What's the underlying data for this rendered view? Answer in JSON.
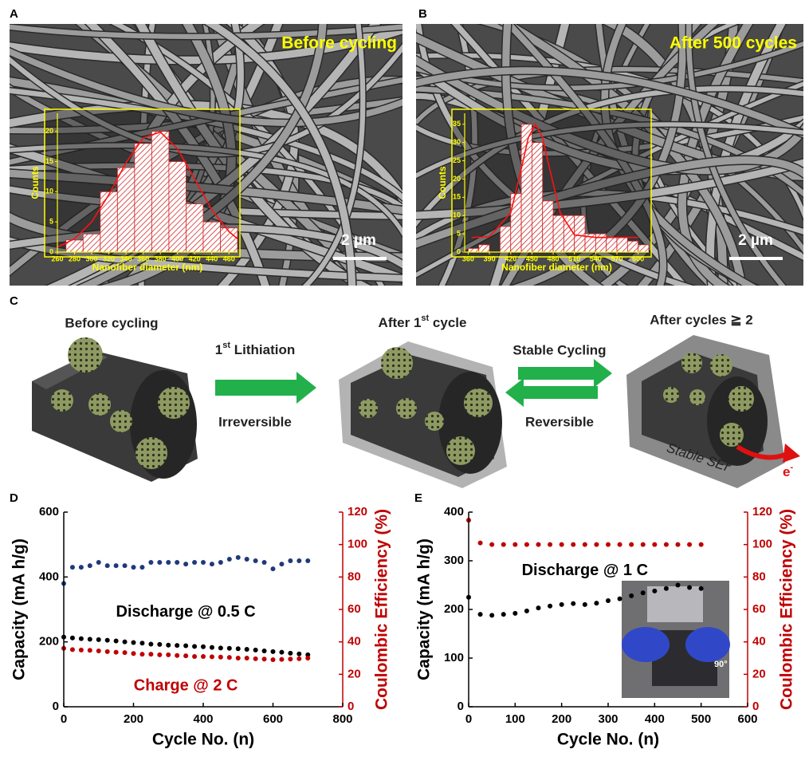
{
  "panel_labels": [
    "A",
    "B",
    "C",
    "D",
    "E"
  ],
  "sem": [
    {
      "caption": "Before cycling",
      "scale_bar": "2 µm"
    },
    {
      "caption": "After 500 cycles",
      "scale_bar": "2 µm"
    }
  ],
  "diagram": {
    "stage1": "Before cycling",
    "lithiation": {
      "number": "1",
      "sup": "st",
      "rest": " Lithiation"
    },
    "irreversible": "Irreversible",
    "stage2": {
      "before": "After 1",
      "sup": "st",
      "after": " cycle"
    },
    "stable_cycling": "Stable Cycling",
    "reversible": "Reversible",
    "stage3": "After cycles ≧ 2",
    "sei": "Stable SEI",
    "electron": {
      "base": "e",
      "sup": "-"
    }
  },
  "chart_data": [
    {
      "type": "histogram",
      "x_label": "Nanofiber diameter  (nm)",
      "y_label": "Counts",
      "color": "#cc2020",
      "axis_color": "#ffff00",
      "bins": [
        270,
        290,
        310,
        330,
        350,
        370,
        390,
        410,
        430,
        450,
        470
      ],
      "counts": [
        2,
        3,
        10,
        14,
        18,
        20,
        15,
        8,
        5,
        4
      ],
      "fit": {
        "color": "#ff1010",
        "x": [
          260,
          280,
          300,
          320,
          340,
          360,
          380,
          400,
          420,
          440,
          460,
          470
        ],
        "values": [
          0.8,
          2.2,
          5.0,
          9.5,
          14.8,
          18.9,
          19.9,
          17.1,
          12.1,
          7.0,
          3.4,
          2.2
        ]
      },
      "xlim": [
        260,
        470
      ],
      "ylim": [
        0,
        23
      ],
      "xticks": [
        260,
        280,
        300,
        320,
        340,
        360,
        380,
        400,
        420,
        440,
        460
      ],
      "yticks": [
        0,
        5,
        10,
        15,
        20
      ]
    },
    {
      "type": "histogram",
      "x_label": "Nanofiber diameter  (nm)",
      "y_label": "Counts",
      "color": "#cc2020",
      "axis_color": "#ffff00",
      "bins": [
        360,
        375,
        390,
        405,
        420,
        435,
        450,
        465,
        480,
        495,
        510,
        525,
        540,
        555,
        570,
        585,
        600,
        615
      ],
      "counts": [
        1,
        2,
        0,
        7,
        16,
        35,
        30,
        14,
        10,
        10,
        10,
        5,
        5,
        4,
        4,
        3,
        2
      ],
      "fit": {
        "color": "#ff1010",
        "x": [
          365,
          390,
          420,
          435,
          445,
          455,
          465,
          475,
          490,
          510,
          540,
          570,
          600
        ],
        "values": [
          4.0,
          4.2,
          10.7,
          22.8,
          31.4,
          35,
          31.4,
          22.8,
          10.7,
          4.7,
          4.0,
          4.0,
          4.0
        ]
      },
      "xlim": [
        355,
        615
      ],
      "ylim": [
        0,
        38
      ],
      "xticks": [
        360,
        390,
        420,
        450,
        480,
        510,
        540,
        570,
        600
      ],
      "yticks": [
        0,
        5,
        10,
        15,
        20,
        25,
        30,
        35
      ]
    },
    {
      "type": "scatter",
      "x_label": "Cycle No. (n)",
      "y_label": "Capacity (mA h/g)",
      "y2_label": "Coulombic Efficiency (%)",
      "y2_color": "#c00000",
      "x": [
        0,
        25,
        50,
        75,
        100,
        125,
        150,
        175,
        200,
        225,
        250,
        275,
        300,
        325,
        350,
        375,
        400,
        425,
        450,
        475,
        500,
        525,
        550,
        575,
        600,
        625,
        650,
        675,
        700
      ],
      "series": [
        {
          "color": "#1f3a7a",
          "axis": "y2",
          "values": [
            76,
            86,
            86,
            87,
            89,
            87,
            87,
            87,
            86,
            86,
            89,
            89,
            89,
            89,
            88,
            89,
            89,
            88,
            89,
            91,
            92,
            91,
            90,
            89,
            85,
            88,
            90,
            90,
            90
          ]
        },
        {
          "name": "Discharge @ 0.5 C",
          "color": "#000000",
          "values": [
            215,
            212,
            210,
            208,
            207,
            205,
            203,
            200,
            198,
            196,
            193,
            192,
            190,
            189,
            188,
            186,
            185,
            183,
            181,
            180,
            179,
            177,
            175,
            172,
            170,
            168,
            165,
            163,
            160
          ]
        },
        {
          "name": "Charge @ 2 C",
          "color": "#c00000",
          "values": [
            180,
            176,
            175,
            174,
            172,
            170,
            168,
            167,
            164,
            162,
            162,
            160,
            160,
            158,
            157,
            155,
            155,
            154,
            153,
            152,
            150,
            150,
            148,
            147,
            145,
            146,
            147,
            148,
            150
          ]
        }
      ],
      "xlim": [
        0,
        800
      ],
      "ylim": [
        0,
        600
      ],
      "y2lim": [
        0,
        120
      ],
      "xticks": [
        0,
        200,
        400,
        600,
        800
      ],
      "yticks": [
        0,
        200,
        400,
        600
      ],
      "y2ticks": [
        0,
        20,
        40,
        60,
        80,
        100,
        120
      ]
    },
    {
      "type": "scatter",
      "x_label": "Cycle No. (n)",
      "y_label": "Capacity (mA h/g)",
      "y2_label": "Coulombic Efficiency (%)",
      "y2_color": "#c00000",
      "inset_label": "90°",
      "x": [
        0,
        25,
        50,
        75,
        100,
        125,
        150,
        175,
        200,
        225,
        250,
        275,
        300,
        325,
        350,
        375,
        400,
        425,
        450,
        475,
        500
      ],
      "series": [
        {
          "color": "#c00000",
          "axis": "y2",
          "values": [
            115,
            101,
            100,
            100,
            100,
            100,
            100,
            100,
            100,
            100,
            100,
            100,
            100,
            100,
            100,
            100,
            100,
            100,
            100,
            100,
            100
          ]
        },
        {
          "name": "Discharge @ 1 C",
          "color": "#000000",
          "values": [
            225,
            190,
            188,
            190,
            192,
            197,
            203,
            207,
            210,
            212,
            210,
            213,
            218,
            222,
            228,
            234,
            238,
            243,
            250,
            245,
            243
          ]
        }
      ],
      "xlim": [
        0,
        600
      ],
      "ylim": [
        0,
        400
      ],
      "y2lim": [
        0,
        120
      ],
      "xticks": [
        0,
        100,
        200,
        300,
        400,
        500,
        600
      ],
      "yticks": [
        0,
        100,
        200,
        300,
        400
      ],
      "y2ticks": [
        0,
        20,
        40,
        60,
        80,
        100,
        120
      ]
    }
  ]
}
